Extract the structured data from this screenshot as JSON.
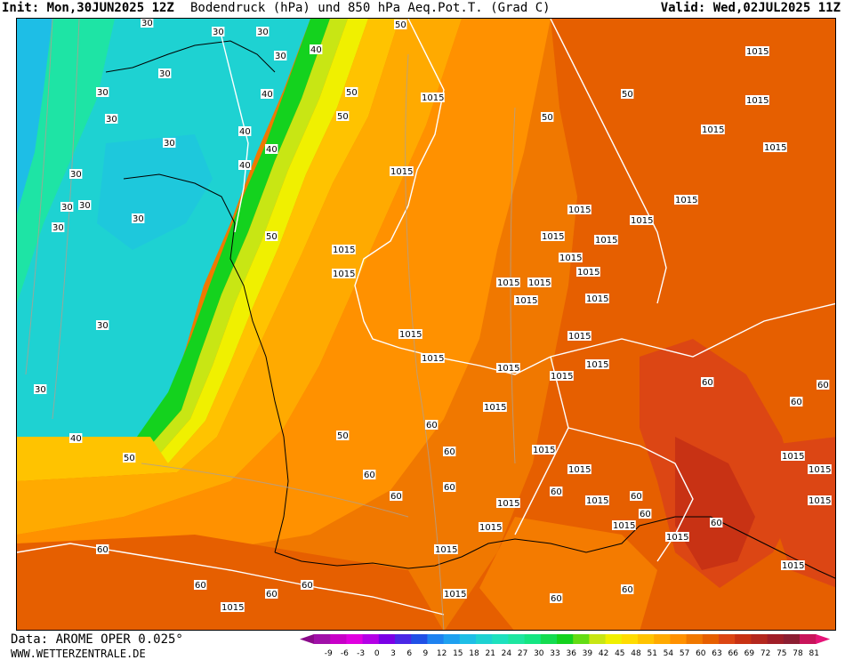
{
  "header": {
    "init": "Init: Mon,30JUN2025 12Z",
    "title": "Bodendruck (hPa) und 850 hPa Aeq.Pot.T. (Grad C)",
    "valid": "Valid: Wed,02JUL2025 11Z"
  },
  "footer": {
    "data_source": "Data: AROME OPER 0.025°",
    "website": "WWW.WETTERZENTRALE.DE"
  },
  "legend": {
    "ticks": [
      "-9",
      "-6",
      "-3",
      "0",
      "3",
      "6",
      "9",
      "12",
      "15",
      "18",
      "21",
      "24",
      "27",
      "30",
      "33",
      "36",
      "39",
      "42",
      "45",
      "48",
      "51",
      "54",
      "57",
      "60",
      "63",
      "66",
      "69",
      "72",
      "75",
      "78",
      "81"
    ],
    "colors": [
      "#8a0a8a",
      "#a010a8",
      "#c800c8",
      "#e000e0",
      "#b400e6",
      "#7a00e6",
      "#4a28e6",
      "#2050e6",
      "#1e82f0",
      "#1ea0f0",
      "#1ebee6",
      "#1ed2d2",
      "#1ee1be",
      "#1ee6a0",
      "#14e682",
      "#14dc50",
      "#14d21e",
      "#64dc14",
      "#c8e614",
      "#f0f000",
      "#ffdc00",
      "#ffc300",
      "#ffaa00",
      "#ff9100",
      "#f07800",
      "#e65f00",
      "#dc4614",
      "#c83214",
      "#b4281e",
      "#a01e28",
      "#8c1e32",
      "#c8145a",
      "#e61478"
    ]
  },
  "map": {
    "pressure_labels": [
      "1015",
      "1015",
      "1015",
      "1015",
      "1015",
      "1015",
      "1015",
      "1015",
      "1015",
      "1015",
      "1015",
      "1015",
      "1015",
      "1015",
      "1015",
      "1015",
      "1015",
      "1015",
      "1015",
      "1015",
      "1015",
      "1015",
      "1015",
      "1015",
      "1015",
      "1015",
      "1015",
      "1015",
      "1015",
      "1015",
      "1015",
      "1015",
      "1015",
      "1015",
      "1015",
      "1015",
      "1015",
      "1015",
      "1015",
      "1015"
    ],
    "temp_labels": [
      "30",
      "30",
      "30",
      "30",
      "30",
      "30",
      "30",
      "30",
      "30",
      "30",
      "30",
      "30",
      "30",
      "30",
      "30",
      "40",
      "40",
      "40",
      "40",
      "40",
      "40",
      "50",
      "50",
      "50",
      "50",
      "50",
      "50",
      "50",
      "50",
      "60",
      "60",
      "60",
      "60",
      "60",
      "60",
      "60",
      "60",
      "60",
      "60",
      "60",
      "60",
      "60",
      "60",
      "60",
      "60",
      "60",
      "60"
    ]
  }
}
